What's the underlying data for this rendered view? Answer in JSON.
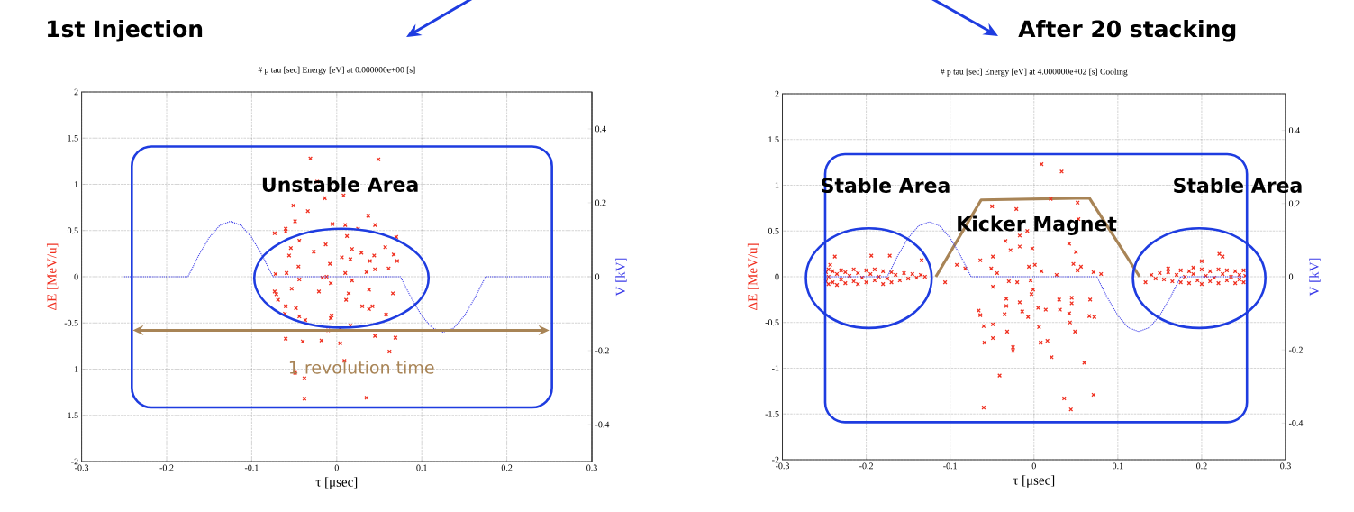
{
  "chart_data": [
    {
      "type": "scatter",
      "title": "1st Injection",
      "subtitle": "# p    tau [sec]   Energy [eV]  at 0.000000e+00 [s]",
      "xlabel": "τ [μsec]",
      "ylabel": "ΔE [MeV/u]",
      "y2label": "V [kV]",
      "xlim": [
        -0.3,
        0.3
      ],
      "xticks": [
        -0.3,
        -0.2,
        -0.1,
        0,
        0.1,
        0.2,
        0.3
      ],
      "ylim": [
        -2,
        2
      ],
      "yticks": [
        -2,
        -1.5,
        -1,
        -0.5,
        0,
        0.5,
        1,
        1.5,
        2
      ],
      "y2lim": [
        -0.5,
        0.5
      ],
      "y2ticks": [
        -0.4,
        -0.2,
        0,
        0.2,
        0.4
      ],
      "grid": true,
      "annotations": [
        "Unstable Area",
        "1 revolution time"
      ],
      "series": [
        {
          "color": "#f03020",
          "marker": "cross",
          "x": [
            -0.031,
            0.049,
            -0.023,
            -0.014,
            0.008,
            -0.051,
            -0.034,
            0.037,
            -0.049,
            -0.06,
            -0.06,
            -0.073,
            -0.005,
            0.01,
            0.045,
            0.012,
            0.025,
            0.07,
            -0.044,
            -0.054,
            -0.013,
            -0.027,
            -0.056,
            0.018,
            0.029,
            0.006,
            0.016,
            0.057,
            0.067,
            0.071,
            0.044,
            0.039,
            -0.008,
            -0.045,
            0.045,
            0.061,
            0.035,
            -0.072,
            -0.059,
            0.01,
            -0.017,
            -0.012,
            -0.007,
            0.018,
            -0.044,
            -0.053,
            -0.021,
            0.038,
            0.014,
            -0.073,
            0.066,
            0.011,
            -0.069,
            -0.06,
            -0.048,
            0.03,
            0.042,
            0.038,
            -0.037,
            -0.044,
            -0.061,
            -0.006,
            -0.007,
            0.058,
            -0.01,
            0.004,
            0.016,
            -0.06,
            -0.04,
            -0.018,
            0.004,
            0.045,
            0.069,
            0.062,
            0.009,
            -0.049,
            -0.038,
            -0.038,
            0.035,
            -0.071
          ],
          "values": [
            1.28,
            1.27,
            1.03,
            0.85,
            0.88,
            0.77,
            0.71,
            0.66,
            0.6,
            0.52,
            0.49,
            0.47,
            0.57,
            0.56,
            0.56,
            0.44,
            0.52,
            0.43,
            0.39,
            0.31,
            0.35,
            0.27,
            0.23,
            0.3,
            0.26,
            0.21,
            0.19,
            0.32,
            0.24,
            0.17,
            0.23,
            0.17,
            0.14,
            0.11,
            0.08,
            0.09,
            0.05,
            0.03,
            0.04,
            0.04,
            -0.01,
            0.0,
            -0.07,
            -0.04,
            -0.03,
            -0.13,
            -0.16,
            -0.14,
            -0.18,
            -0.16,
            -0.18,
            -0.25,
            -0.25,
            -0.32,
            -0.34,
            -0.32,
            -0.32,
            -0.35,
            -0.47,
            -0.43,
            -0.4,
            -0.42,
            -0.45,
            -0.41,
            -0.58,
            -0.56,
            -0.53,
            -0.67,
            -0.7,
            -0.69,
            -0.72,
            -0.64,
            -0.66,
            -0.81,
            -0.91,
            -1.04,
            -1.1,
            -1.32,
            -1.31,
            -0.19
          ]
        },
        {
          "type": "line",
          "axis": "y2",
          "color": "#3a3ae8",
          "marker": "none",
          "line_style": "dotted",
          "x": [
            -0.25,
            -0.175,
            -0.1625,
            -0.15,
            -0.1375,
            -0.125,
            -0.1125,
            -0.1,
            -0.0875,
            -0.075,
            0.075,
            0.0875,
            0.1,
            0.1125,
            0.125,
            0.1375,
            0.15,
            0.1625,
            0.175,
            0.25
          ],
          "values": [
            0,
            0,
            0.057,
            0.106,
            0.139,
            0.15,
            0.139,
            0.106,
            0.057,
            0,
            0,
            -0.057,
            -0.106,
            -0.139,
            -0.15,
            -0.139,
            -0.106,
            -0.057,
            0,
            0
          ]
        }
      ]
    },
    {
      "type": "scatter",
      "title": "After 20 stacking",
      "subtitle": "# p    tau [sec]   Energy [eV]  at 4.000000e+02 [s]   Cooling",
      "xlabel": "τ [μsec]",
      "ylabel": "ΔE [MeV/u]",
      "y2label": "V [kV]",
      "xlim": [
        -0.3,
        0.3
      ],
      "xticks": [
        -0.3,
        -0.2,
        -0.1,
        0,
        0.1,
        0.2,
        0.3
      ],
      "ylim": [
        -2,
        2
      ],
      "yticks": [
        -2,
        -1.5,
        -1,
        -0.5,
        0,
        0.5,
        1,
        1.5,
        2
      ],
      "y2lim": [
        -0.5,
        0.5
      ],
      "y2ticks": [
        -0.4,
        -0.2,
        0,
        0.2,
        0.4
      ],
      "grid": true,
      "annotations": [
        "Stable Area",
        "Kicker Magnet",
        "Stable Area"
      ],
      "series": [
        {
          "color": "#f03020",
          "marker": "cross",
          "x": [
            0.009,
            0.033,
            -0.05,
            -0.021,
            0.02,
            0.052,
            0.053,
            -0.008,
            -0.017,
            -0.034,
            -0.028,
            -0.017,
            -0.002,
            0.042,
            0.05,
            -0.064,
            -0.049,
            -0.092,
            -0.082,
            -0.051,
            -0.044,
            -0.006,
            0.001,
            0.009,
            0.047,
            0.056,
            0.052,
            0.027,
            0.071,
            0.08,
            -0.106,
            -0.049,
            -0.03,
            -0.02,
            -0.004,
            -0.001,
            -0.003,
            -0.033,
            -0.033,
            -0.017,
            0.03,
            0.045,
            0.045,
            0.067,
            -0.066,
            -0.064,
            -0.035,
            -0.014,
            -0.007,
            0.005,
            0.014,
            0.031,
            0.042,
            0.066,
            0.072,
            0.043,
            -0.06,
            -0.049,
            -0.032,
            0.006,
            0.049,
            -0.059,
            -0.049,
            -0.025,
            -0.025,
            0.008,
            0.016,
            0.021,
            0.06,
            -0.041,
            0.036,
            0.071,
            -0.06,
            0.044,
            -0.248,
            -0.248,
            -0.245,
            -0.245,
            -0.245,
            -0.24,
            -0.24,
            -0.235,
            -0.235,
            -0.23,
            -0.23,
            -0.225,
            -0.225,
            -0.22,
            -0.215,
            -0.215,
            -0.21,
            -0.21,
            -0.205,
            -0.2,
            -0.2,
            -0.195,
            -0.19,
            -0.19,
            -0.185,
            -0.18,
            -0.18,
            -0.175,
            -0.17,
            -0.17,
            -0.165,
            -0.16,
            -0.155,
            -0.15,
            -0.145,
            -0.14,
            -0.135,
            -0.13,
            -0.2375,
            -0.194,
            -0.172,
            -0.134,
            -0.243,
            0.14,
            0.145,
            0.15,
            0.155,
            0.16,
            0.165,
            0.17,
            0.175,
            0.175,
            0.18,
            0.185,
            0.185,
            0.19,
            0.195,
            0.2,
            0.2,
            0.205,
            0.21,
            0.21,
            0.215,
            0.22,
            0.22,
            0.225,
            0.23,
            0.23,
            0.235,
            0.24,
            0.24,
            0.245,
            0.245,
            0.25,
            0.25,
            0.252,
            0.221,
            0.225,
            0.2,
            0.133,
            0.16,
            0.19
          ],
          "values": [
            1.23,
            1.15,
            0.77,
            0.74,
            0.85,
            0.81,
            0.63,
            0.5,
            0.45,
            0.39,
            0.29,
            0.33,
            0.31,
            0.36,
            0.27,
            0.18,
            0.22,
            0.13,
            0.09,
            0.09,
            0.04,
            0.11,
            0.13,
            0.06,
            0.14,
            0.11,
            0.07,
            0.02,
            0.05,
            0.03,
            -0.06,
            -0.11,
            -0.05,
            -0.06,
            -0.04,
            -0.14,
            -0.19,
            -0.24,
            -0.32,
            -0.28,
            -0.25,
            -0.23,
            -0.29,
            -0.25,
            -0.37,
            -0.42,
            -0.41,
            -0.38,
            -0.44,
            -0.34,
            -0.36,
            -0.36,
            -0.4,
            -0.43,
            -0.44,
            -0.5,
            -0.54,
            -0.52,
            -0.6,
            -0.55,
            -0.6,
            -0.72,
            -0.67,
            -0.77,
            -0.81,
            -0.72,
            -0.7,
            -0.88,
            -0.94,
            -1.08,
            -1.33,
            -1.29,
            -1.43,
            -1.45,
            0.05,
            -0.05,
            0.08,
            0,
            -0.08,
            0.06,
            -0.06,
            0.03,
            -0.09,
            0.07,
            -0.03,
            0.05,
            -0.07,
            0.01,
            0.08,
            -0.05,
            0.04,
            -0.08,
            -0.01,
            0.07,
            -0.06,
            0.03,
            -0.04,
            0.08,
            0,
            -0.08,
            0.06,
            -0.02,
            0.05,
            -0.06,
            0.02,
            -0.04,
            0.04,
            -0.02,
            0.03,
            -0.01,
            0.02,
            0,
            0.22,
            0.23,
            0.23,
            0.18,
            0.13,
            0.02,
            -0.02,
            0.04,
            -0.03,
            0.05,
            -0.05,
            0.02,
            0.07,
            -0.06,
            0,
            0.06,
            -0.07,
            0.03,
            -0.04,
            0.08,
            -0.08,
            0.01,
            0.06,
            -0.05,
            -0.01,
            0.08,
            -0.07,
            0.03,
            -0.04,
            0.07,
            0,
            0.06,
            -0.07,
            0.02,
            -0.03,
            0.07,
            -0.06,
            0.01,
            0.25,
            0.22,
            0.17,
            -0.06,
            0.09,
            0.1
          ]
        },
        {
          "type": "line",
          "color": "#a88456",
          "marker": "none",
          "line_style": "solid",
          "x": [
            -0.117,
            -0.063,
            0.066,
            0.126
          ],
          "values": [
            0,
            0.84,
            0.86,
            0
          ]
        },
        {
          "type": "line",
          "axis": "y2",
          "color": "#3a3ae8",
          "marker": "none",
          "line_style": "dotted",
          "x": [
            -0.25,
            -0.175,
            -0.1625,
            -0.15,
            -0.1375,
            -0.125,
            -0.1125,
            -0.1,
            -0.0875,
            -0.075,
            0.075,
            0.0875,
            0.1,
            0.1125,
            0.125,
            0.1375,
            0.15,
            0.1625,
            0.175,
            0.25
          ],
          "values": [
            0,
            0,
            0.057,
            0.106,
            0.139,
            0.15,
            0.139,
            0.106,
            0.057,
            0,
            0,
            -0.057,
            -0.106,
            -0.139,
            -0.15,
            -0.139,
            -0.106,
            -0.057,
            0,
            0
          ]
        }
      ]
    }
  ]
}
